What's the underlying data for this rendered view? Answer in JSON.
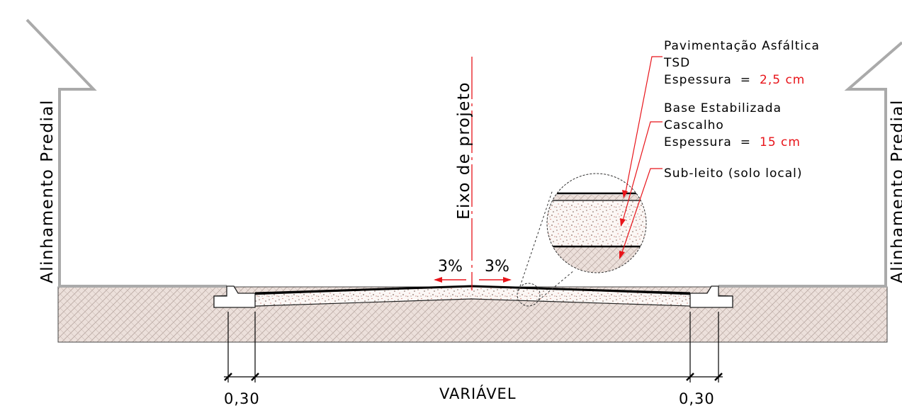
{
  "building_line_left": "Alinhamento Predial",
  "building_line_right": "Alinhamento Predial",
  "centerline": "Eixo de projeto",
  "slope_left": "3%",
  "slope_right": "3%",
  "layers": [
    {
      "name": "Pavimentação Asfáltica",
      "material": "TSD",
      "thickness_label": "Espessura",
      "eq": "=",
      "thickness_value": "2,5 cm"
    },
    {
      "name": "Base Estabilizada",
      "material": "Cascalho",
      "thickness_label": "Espessura",
      "eq": "=",
      "thickness_value": "15 cm"
    },
    {
      "name": "Sub-leito (solo local)"
    }
  ],
  "dimensions": {
    "left": "0,30",
    "center": "VARIÁVEL",
    "right": "0,30"
  },
  "colors": {
    "red": "#e8141a",
    "soil": "#e8d8d2",
    "line": "#000000",
    "hatch": "#b8a8a2"
  }
}
